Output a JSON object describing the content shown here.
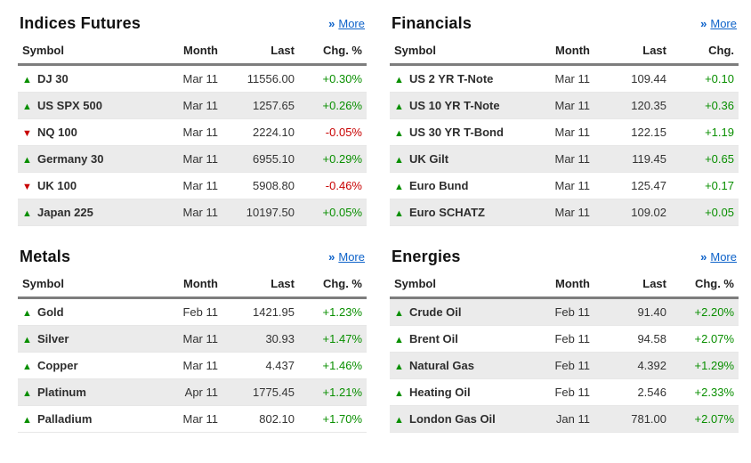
{
  "colors": {
    "up": "#098f00",
    "down": "#c80000",
    "link": "#0d62c9",
    "stripe": "#ebebeb",
    "header_rule": "#7d7d7d",
    "text": "#333333",
    "title": "#111111"
  },
  "panels": [
    {
      "id": "indices-futures",
      "title": "Indices Futures",
      "more_label": "More",
      "columns": [
        "Symbol",
        "Month",
        "Last",
        "Chg. %"
      ],
      "rows": [
        {
          "direction": "up",
          "symbol": "DJ 30",
          "month": "Mar 11",
          "last": "11556.00",
          "change": "+0.30%"
        },
        {
          "direction": "up",
          "symbol": "US SPX 500",
          "month": "Mar 11",
          "last": "1257.65",
          "change": "+0.26%"
        },
        {
          "direction": "down",
          "symbol": "NQ 100",
          "month": "Mar 11",
          "last": "2224.10",
          "change": "-0.05%"
        },
        {
          "direction": "up",
          "symbol": "Germany 30",
          "month": "Mar 11",
          "last": "6955.10",
          "change": "+0.29%"
        },
        {
          "direction": "down",
          "symbol": "UK 100",
          "month": "Mar 11",
          "last": "5908.80",
          "change": "-0.46%"
        },
        {
          "direction": "up",
          "symbol": "Japan 225",
          "month": "Mar 11",
          "last": "10197.50",
          "change": "+0.05%"
        }
      ]
    },
    {
      "id": "financials",
      "title": "Financials",
      "more_label": "More",
      "columns": [
        "Symbol",
        "Month",
        "Last",
        "Chg."
      ],
      "rows": [
        {
          "direction": "up",
          "symbol": "US 2 YR T-Note",
          "month": "Mar 11",
          "last": "109.44",
          "change": "+0.10"
        },
        {
          "direction": "up",
          "symbol": "US 10 YR T-Note",
          "month": "Mar 11",
          "last": "120.35",
          "change": "+0.36"
        },
        {
          "direction": "up",
          "symbol": "US 30 YR T-Bond",
          "month": "Mar 11",
          "last": "122.15",
          "change": "+1.19"
        },
        {
          "direction": "up",
          "symbol": "UK Gilt",
          "month": "Mar 11",
          "last": "119.45",
          "change": "+0.65"
        },
        {
          "direction": "up",
          "symbol": "Euro Bund",
          "month": "Mar 11",
          "last": "125.47",
          "change": "+0.17"
        },
        {
          "direction": "up",
          "symbol": "Euro SCHATZ",
          "month": "Mar 11",
          "last": "109.02",
          "change": "+0.05"
        }
      ]
    },
    {
      "id": "metals",
      "title": "Metals",
      "more_label": "More",
      "columns": [
        "Symbol",
        "Month",
        "Last",
        "Chg. %"
      ],
      "rows": [
        {
          "direction": "up",
          "symbol": "Gold",
          "month": "Feb 11",
          "last": "1421.95",
          "change": "+1.23%"
        },
        {
          "direction": "up",
          "symbol": "Silver",
          "month": "Mar 11",
          "last": "30.93",
          "change": "+1.47%"
        },
        {
          "direction": "up",
          "symbol": "Copper",
          "month": "Mar 11",
          "last": "4.437",
          "change": "+1.46%"
        },
        {
          "direction": "up",
          "symbol": "Platinum",
          "month": "Apr 11",
          "last": "1775.45",
          "change": "+1.21%"
        },
        {
          "direction": "up",
          "symbol": "Palladium",
          "month": "Mar 11",
          "last": "802.10",
          "change": "+1.70%"
        }
      ]
    },
    {
      "id": "energies",
      "title": "Energies",
      "more_label": "More",
      "columns": [
        "Symbol",
        "Month",
        "Last",
        "Chg. %"
      ],
      "rows": [
        {
          "direction": "up",
          "symbol": "Crude Oil",
          "month": "Feb 11",
          "last": "91.40",
          "change": "+2.20%"
        },
        {
          "direction": "up",
          "symbol": "Brent Oil",
          "month": "Feb 11",
          "last": "94.58",
          "change": "+2.07%"
        },
        {
          "direction": "up",
          "symbol": "Natural Gas",
          "month": "Feb 11",
          "last": "4.392",
          "change": "+1.29%"
        },
        {
          "direction": "up",
          "symbol": "Heating Oil",
          "month": "Feb 11",
          "last": "2.546",
          "change": "+2.33%"
        },
        {
          "direction": "up",
          "symbol": "London Gas Oil",
          "month": "Jan 11",
          "last": "781.00",
          "change": "+2.07%"
        }
      ]
    }
  ]
}
